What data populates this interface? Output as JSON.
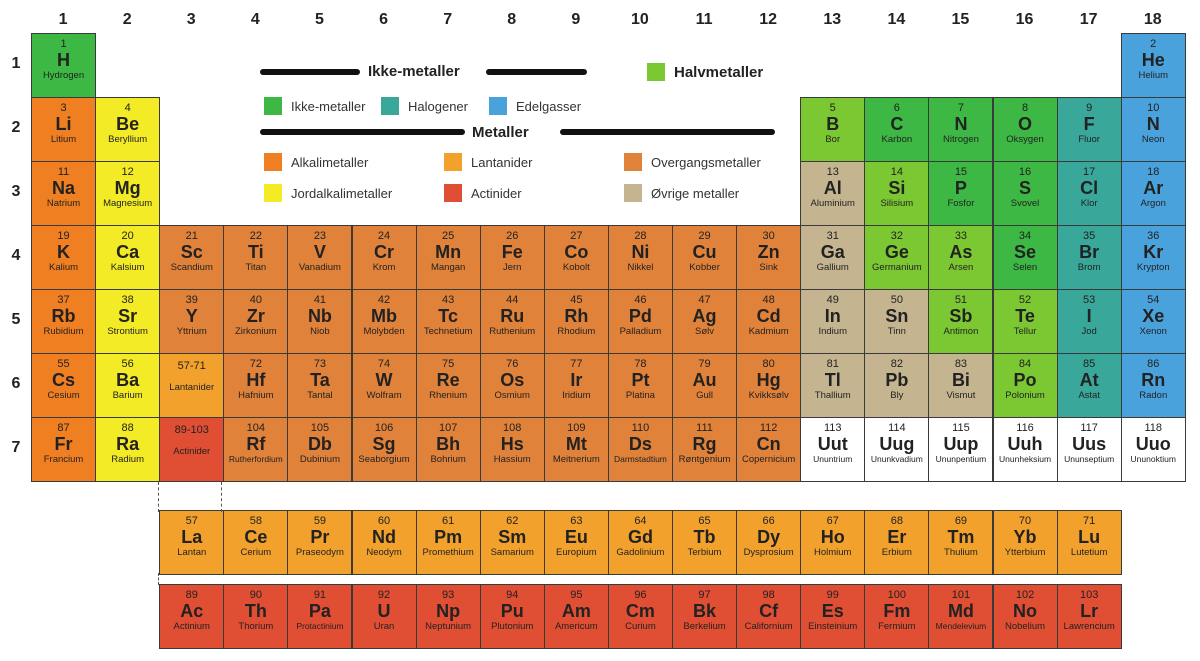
{
  "groups": [
    "1",
    "2",
    "3",
    "4",
    "5",
    "6",
    "7",
    "8",
    "9",
    "10",
    "11",
    "12",
    "13",
    "14",
    "15",
    "16",
    "17",
    "18"
  ],
  "periods": [
    "1",
    "2",
    "3",
    "4",
    "5",
    "6",
    "7"
  ],
  "colors": {
    "alkali": "#f07f21",
    "alkaline": "#f2eb26",
    "transition": "#e0823a",
    "post": "#c4b590",
    "metalloid": "#7cc832",
    "nonmetal": "#3db844",
    "halogen": "#39a79a",
    "noble": "#4aa2dc",
    "lanth": "#f3a12d",
    "act": "#e04e33",
    "unknown": "#ffffff"
  },
  "legend": {
    "nonmetal_heading": "Ikke-metaller",
    "metalloid": "Halvmetaller",
    "nonmetal": "Ikke-metaller",
    "halogen": "Halogener",
    "noble": "Edelgasser",
    "metal_heading": "Metaller",
    "alkali": "Alkalimetaller",
    "alkaline": "Jordalkalimetaller",
    "lanth": "Lantanider",
    "act": "Actinider",
    "transition": "Overgangsmetaller",
    "post": "Øvrige metaller"
  },
  "elements": [
    {
      "num": "1",
      "sym": "H",
      "name": "Hydrogen",
      "g": 1,
      "p": 1,
      "c": "nonmetal"
    },
    {
      "num": "2",
      "sym": "He",
      "name": "Helium",
      "g": 18,
      "p": 1,
      "c": "noble"
    },
    {
      "num": "3",
      "sym": "Li",
      "name": "Litium",
      "g": 1,
      "p": 2,
      "c": "alkali"
    },
    {
      "num": "4",
      "sym": "Be",
      "name": "Beryllium",
      "g": 2,
      "p": 2,
      "c": "alkaline"
    },
    {
      "num": "5",
      "sym": "B",
      "name": "Bor",
      "g": 13,
      "p": 2,
      "c": "metalloid"
    },
    {
      "num": "6",
      "sym": "C",
      "name": "Karbon",
      "g": 14,
      "p": 2,
      "c": "nonmetal"
    },
    {
      "num": "7",
      "sym": "N",
      "name": "Nitrogen",
      "g": 15,
      "p": 2,
      "c": "nonmetal"
    },
    {
      "num": "8",
      "sym": "O",
      "name": "Oksygen",
      "g": 16,
      "p": 2,
      "c": "nonmetal"
    },
    {
      "num": "9",
      "sym": "F",
      "name": "Fluor",
      "g": 17,
      "p": 2,
      "c": "halogen"
    },
    {
      "num": "10",
      "sym": "N",
      "name": "Neon",
      "g": 18,
      "p": 2,
      "c": "noble"
    },
    {
      "num": "11",
      "sym": "Na",
      "name": "Natrium",
      "g": 1,
      "p": 3,
      "c": "alkali"
    },
    {
      "num": "12",
      "sym": "Mg",
      "name": "Magnesium",
      "g": 2,
      "p": 3,
      "c": "alkaline"
    },
    {
      "num": "13",
      "sym": "Al",
      "name": "Aluminium",
      "g": 13,
      "p": 3,
      "c": "post"
    },
    {
      "num": "14",
      "sym": "Si",
      "name": "Silisium",
      "g": 14,
      "p": 3,
      "c": "metalloid"
    },
    {
      "num": "15",
      "sym": "P",
      "name": "Fosfor",
      "g": 15,
      "p": 3,
      "c": "nonmetal"
    },
    {
      "num": "16",
      "sym": "S",
      "name": "Svovel",
      "g": 16,
      "p": 3,
      "c": "nonmetal"
    },
    {
      "num": "17",
      "sym": "Cl",
      "name": "Klor",
      "g": 17,
      "p": 3,
      "c": "halogen"
    },
    {
      "num": "18",
      "sym": "Ar",
      "name": "Argon",
      "g": 18,
      "p": 3,
      "c": "noble"
    },
    {
      "num": "19",
      "sym": "K",
      "name": "Kalium",
      "g": 1,
      "p": 4,
      "c": "alkali"
    },
    {
      "num": "20",
      "sym": "Ca",
      "name": "Kalsium",
      "g": 2,
      "p": 4,
      "c": "alkaline"
    },
    {
      "num": "21",
      "sym": "Sc",
      "name": "Scandium",
      "g": 3,
      "p": 4,
      "c": "transition"
    },
    {
      "num": "22",
      "sym": "Ti",
      "name": "Titan",
      "g": 4,
      "p": 4,
      "c": "transition"
    },
    {
      "num": "23",
      "sym": "V",
      "name": "Vanadium",
      "g": 5,
      "p": 4,
      "c": "transition"
    },
    {
      "num": "24",
      "sym": "Cr",
      "name": "Krom",
      "g": 6,
      "p": 4,
      "c": "transition"
    },
    {
      "num": "25",
      "sym": "Mn",
      "name": "Mangan",
      "g": 7,
      "p": 4,
      "c": "transition"
    },
    {
      "num": "26",
      "sym": "Fe",
      "name": "Jern",
      "g": 8,
      "p": 4,
      "c": "transition"
    },
    {
      "num": "27",
      "sym": "Co",
      "name": "Kobolt",
      "g": 9,
      "p": 4,
      "c": "transition"
    },
    {
      "num": "28",
      "sym": "Ni",
      "name": "Nikkel",
      "g": 10,
      "p": 4,
      "c": "transition"
    },
    {
      "num": "29",
      "sym": "Cu",
      "name": "Kobber",
      "g": 11,
      "p": 4,
      "c": "transition"
    },
    {
      "num": "30",
      "sym": "Zn",
      "name": "Sink",
      "g": 12,
      "p": 4,
      "c": "transition"
    },
    {
      "num": "31",
      "sym": "Ga",
      "name": "Gallium",
      "g": 13,
      "p": 4,
      "c": "post"
    },
    {
      "num": "32",
      "sym": "Ge",
      "name": "Germanium",
      "g": 14,
      "p": 4,
      "c": "metalloid"
    },
    {
      "num": "33",
      "sym": "As",
      "name": "Arsen",
      "g": 15,
      "p": 4,
      "c": "metalloid"
    },
    {
      "num": "34",
      "sym": "Se",
      "name": "Selen",
      "g": 16,
      "p": 4,
      "c": "nonmetal"
    },
    {
      "num": "35",
      "sym": "Br",
      "name": "Brom",
      "g": 17,
      "p": 4,
      "c": "halogen"
    },
    {
      "num": "36",
      "sym": "Kr",
      "name": "Krypton",
      "g": 18,
      "p": 4,
      "c": "noble"
    },
    {
      "num": "37",
      "sym": "Rb",
      "name": "Rubidium",
      "g": 1,
      "p": 5,
      "c": "alkali"
    },
    {
      "num": "38",
      "sym": "Sr",
      "name": "Strontium",
      "g": 2,
      "p": 5,
      "c": "alkaline"
    },
    {
      "num": "39",
      "sym": "Y",
      "name": "Yttrium",
      "g": 3,
      "p": 5,
      "c": "transition"
    },
    {
      "num": "40",
      "sym": "Zr",
      "name": "Zirkonium",
      "g": 4,
      "p": 5,
      "c": "transition"
    },
    {
      "num": "41",
      "sym": "Nb",
      "name": "Niob",
      "g": 5,
      "p": 5,
      "c": "transition"
    },
    {
      "num": "42",
      "sym": "Mb",
      "name": "Molybden",
      "g": 6,
      "p": 5,
      "c": "transition"
    },
    {
      "num": "43",
      "sym": "Tc",
      "name": "Technetium",
      "g": 7,
      "p": 5,
      "c": "transition"
    },
    {
      "num": "44",
      "sym": "Ru",
      "name": "Ruthenium",
      "g": 8,
      "p": 5,
      "c": "transition"
    },
    {
      "num": "45",
      "sym": "Rh",
      "name": "Rhodium",
      "g": 9,
      "p": 5,
      "c": "transition"
    },
    {
      "num": "46",
      "sym": "Pd",
      "name": "Palladium",
      "g": 10,
      "p": 5,
      "c": "transition"
    },
    {
      "num": "47",
      "sym": "Ag",
      "name": "Sølv",
      "g": 11,
      "p": 5,
      "c": "transition"
    },
    {
      "num": "48",
      "sym": "Cd",
      "name": "Kadmium",
      "g": 12,
      "p": 5,
      "c": "transition"
    },
    {
      "num": "49",
      "sym": "In",
      "name": "Indium",
      "g": 13,
      "p": 5,
      "c": "post"
    },
    {
      "num": "50",
      "sym": "Sn",
      "name": "Tinn",
      "g": 14,
      "p": 5,
      "c": "post"
    },
    {
      "num": "51",
      "sym": "Sb",
      "name": "Antimon",
      "g": 15,
      "p": 5,
      "c": "metalloid"
    },
    {
      "num": "52",
      "sym": "Te",
      "name": "Tellur",
      "g": 16,
      "p": 5,
      "c": "metalloid"
    },
    {
      "num": "53",
      "sym": "I",
      "name": "Jod",
      "g": 17,
      "p": 5,
      "c": "halogen"
    },
    {
      "num": "54",
      "sym": "Xe",
      "name": "Xenon",
      "g": 18,
      "p": 5,
      "c": "noble"
    },
    {
      "num": "55",
      "sym": "Cs",
      "name": "Cesium",
      "g": 1,
      "p": 6,
      "c": "alkali"
    },
    {
      "num": "56",
      "sym": "Ba",
      "name": "Barium",
      "g": 2,
      "p": 6,
      "c": "alkaline"
    },
    {
      "num": "57-71",
      "sym": "",
      "name": "Lantanider",
      "g": 3,
      "p": 6,
      "c": "lanth",
      "range": true
    },
    {
      "num": "72",
      "sym": "Hf",
      "name": "Hafnium",
      "g": 4,
      "p": 6,
      "c": "transition"
    },
    {
      "num": "73",
      "sym": "Ta",
      "name": "Tantal",
      "g": 5,
      "p": 6,
      "c": "transition"
    },
    {
      "num": "74",
      "sym": "W",
      "name": "Wolfram",
      "g": 6,
      "p": 6,
      "c": "transition"
    },
    {
      "num": "75",
      "sym": "Re",
      "name": "Rhenium",
      "g": 7,
      "p": 6,
      "c": "transition"
    },
    {
      "num": "76",
      "sym": "Os",
      "name": "Osmium",
      "g": 8,
      "p": 6,
      "c": "transition"
    },
    {
      "num": "77",
      "sym": "Ir",
      "name": "Iridium",
      "g": 9,
      "p": 6,
      "c": "transition"
    },
    {
      "num": "78",
      "sym": "Pt",
      "name": "Platina",
      "g": 10,
      "p": 6,
      "c": "transition"
    },
    {
      "num": "79",
      "sym": "Au",
      "name": "Gull",
      "g": 11,
      "p": 6,
      "c": "transition"
    },
    {
      "num": "80",
      "sym": "Hg",
      "name": "Kvikksølv",
      "g": 12,
      "p": 6,
      "c": "transition"
    },
    {
      "num": "81",
      "sym": "Tl",
      "name": "Thallium",
      "g": 13,
      "p": 6,
      "c": "post"
    },
    {
      "num": "82",
      "sym": "Pb",
      "name": "Bly",
      "g": 14,
      "p": 6,
      "c": "post"
    },
    {
      "num": "83",
      "sym": "Bi",
      "name": "Vismut",
      "g": 15,
      "p": 6,
      "c": "post"
    },
    {
      "num": "84",
      "sym": "Po",
      "name": "Polonium",
      "g": 16,
      "p": 6,
      "c": "metalloid"
    },
    {
      "num": "85",
      "sym": "At",
      "name": "Astat",
      "g": 17,
      "p": 6,
      "c": "halogen"
    },
    {
      "num": "86",
      "sym": "Rn",
      "name": "Radon",
      "g": 18,
      "p": 6,
      "c": "noble"
    },
    {
      "num": "87",
      "sym": "Fr",
      "name": "Francium",
      "g": 1,
      "p": 7,
      "c": "alkali"
    },
    {
      "num": "88",
      "sym": "Ra",
      "name": "Radium",
      "g": 2,
      "p": 7,
      "c": "alkaline"
    },
    {
      "num": "89-103",
      "sym": "",
      "name": "Actinider",
      "g": 3,
      "p": 7,
      "c": "act",
      "range": true
    },
    {
      "num": "104",
      "sym": "Rf",
      "name": "Rutherfordium",
      "g": 4,
      "p": 7,
      "c": "transition",
      "small": true
    },
    {
      "num": "105",
      "sym": "Db",
      "name": "Dubinium",
      "g": 5,
      "p": 7,
      "c": "transition"
    },
    {
      "num": "106",
      "sym": "Sg",
      "name": "Seaborgium",
      "g": 6,
      "p": 7,
      "c": "transition"
    },
    {
      "num": "107",
      "sym": "Bh",
      "name": "Bohrium",
      "g": 7,
      "p": 7,
      "c": "transition"
    },
    {
      "num": "108",
      "sym": "Hs",
      "name": "Hassium",
      "g": 8,
      "p": 7,
      "c": "transition"
    },
    {
      "num": "109",
      "sym": "Mt",
      "name": "Meitnerium",
      "g": 9,
      "p": 7,
      "c": "transition"
    },
    {
      "num": "110",
      "sym": "Ds",
      "name": "Darmstadtium",
      "g": 10,
      "p": 7,
      "c": "transition",
      "small": true
    },
    {
      "num": "111",
      "sym": "Rg",
      "name": "Røntgenium",
      "g": 11,
      "p": 7,
      "c": "transition"
    },
    {
      "num": "112",
      "sym": "Cn",
      "name": "Copernicium",
      "g": 12,
      "p": 7,
      "c": "transition"
    },
    {
      "num": "113",
      "sym": "Uut",
      "name": "Ununtrium",
      "g": 13,
      "p": 7,
      "c": "unknown",
      "small": true
    },
    {
      "num": "114",
      "sym": "Uug",
      "name": "Ununkvadium",
      "g": 14,
      "p": 7,
      "c": "unknown",
      "small": true
    },
    {
      "num": "115",
      "sym": "Uup",
      "name": "Ununpentium",
      "g": 15,
      "p": 7,
      "c": "unknown",
      "small": true
    },
    {
      "num": "116",
      "sym": "Uuh",
      "name": "Ununheksium",
      "g": 16,
      "p": 7,
      "c": "unknown",
      "small": true
    },
    {
      "num": "117",
      "sym": "Uus",
      "name": "Ununseptium",
      "g": 17,
      "p": 7,
      "c": "unknown",
      "small": true
    },
    {
      "num": "118",
      "sym": "Uuo",
      "name": "Ununoktium",
      "g": 18,
      "p": 7,
      "c": "unknown",
      "small": true
    },
    {
      "num": "57",
      "sym": "La",
      "name": "Lantan",
      "g": 3,
      "p": 9,
      "c": "lanth"
    },
    {
      "num": "58",
      "sym": "Ce",
      "name": "Cerium",
      "g": 4,
      "p": 9,
      "c": "lanth"
    },
    {
      "num": "59",
      "sym": "Pr",
      "name": "Praseodym",
      "g": 5,
      "p": 9,
      "c": "lanth"
    },
    {
      "num": "60",
      "sym": "Nd",
      "name": "Neodym",
      "g": 6,
      "p": 9,
      "c": "lanth"
    },
    {
      "num": "61",
      "sym": "Pm",
      "name": "Promethium",
      "g": 7,
      "p": 9,
      "c": "lanth"
    },
    {
      "num": "62",
      "sym": "Sm",
      "name": "Samarium",
      "g": 8,
      "p": 9,
      "c": "lanth"
    },
    {
      "num": "63",
      "sym": "Eu",
      "name": "Europium",
      "g": 9,
      "p": 9,
      "c": "lanth"
    },
    {
      "num": "64",
      "sym": "Gd",
      "name": "Gadolinium",
      "g": 10,
      "p": 9,
      "c": "lanth"
    },
    {
      "num": "65",
      "sym": "Tb",
      "name": "Terbium",
      "g": 11,
      "p": 9,
      "c": "lanth"
    },
    {
      "num": "66",
      "sym": "Dy",
      "name": "Dysprosium",
      "g": 12,
      "p": 9,
      "c": "lanth"
    },
    {
      "num": "67",
      "sym": "Ho",
      "name": "Holmium",
      "g": 13,
      "p": 9,
      "c": "lanth"
    },
    {
      "num": "68",
      "sym": "Er",
      "name": "Erbium",
      "g": 14,
      "p": 9,
      "c": "lanth"
    },
    {
      "num": "69",
      "sym": "Tm",
      "name": "Thulium",
      "g": 15,
      "p": 9,
      "c": "lanth"
    },
    {
      "num": "70",
      "sym": "Yb",
      "name": "Ytterbium",
      "g": 16,
      "p": 9,
      "c": "lanth"
    },
    {
      "num": "71",
      "sym": "Lu",
      "name": "Lutetium",
      "g": 17,
      "p": 9,
      "c": "lanth"
    },
    {
      "num": "89",
      "sym": "Ac",
      "name": "Actinium",
      "g": 3,
      "p": 10,
      "c": "act"
    },
    {
      "num": "90",
      "sym": "Th",
      "name": "Thorium",
      "g": 4,
      "p": 10,
      "c": "act"
    },
    {
      "num": "91",
      "sym": "Pa",
      "name": "Protactinium",
      "g": 5,
      "p": 10,
      "c": "act",
      "small": true
    },
    {
      "num": "92",
      "sym": "U",
      "name": "Uran",
      "g": 6,
      "p": 10,
      "c": "act"
    },
    {
      "num": "93",
      "sym": "Np",
      "name": "Neptunium",
      "g": 7,
      "p": 10,
      "c": "act"
    },
    {
      "num": "94",
      "sym": "Pu",
      "name": "Plutonium",
      "g": 8,
      "p": 10,
      "c": "act"
    },
    {
      "num": "95",
      "sym": "Am",
      "name": "Americum",
      "g": 9,
      "p": 10,
      "c": "act"
    },
    {
      "num": "96",
      "sym": "Cm",
      "name": "Curium",
      "g": 10,
      "p": 10,
      "c": "act"
    },
    {
      "num": "97",
      "sym": "Bk",
      "name": "Berkelium",
      "g": 11,
      "p": 10,
      "c": "act"
    },
    {
      "num": "98",
      "sym": "Cf",
      "name": "Californium",
      "g": 12,
      "p": 10,
      "c": "act"
    },
    {
      "num": "99",
      "sym": "Es",
      "name": "Einsteinium",
      "g": 13,
      "p": 10,
      "c": "act"
    },
    {
      "num": "100",
      "sym": "Fm",
      "name": "Fermium",
      "g": 14,
      "p": 10,
      "c": "act"
    },
    {
      "num": "101",
      "sym": "Md",
      "name": "Mendelevium",
      "g": 15,
      "p": 10,
      "c": "act",
      "small": true
    },
    {
      "num": "102",
      "sym": "No",
      "name": "Nobelium",
      "g": 16,
      "p": 10,
      "c": "act"
    },
    {
      "num": "103",
      "sym": "Lr",
      "name": "Lawrencium",
      "g": 17,
      "p": 10,
      "c": "act"
    }
  ]
}
